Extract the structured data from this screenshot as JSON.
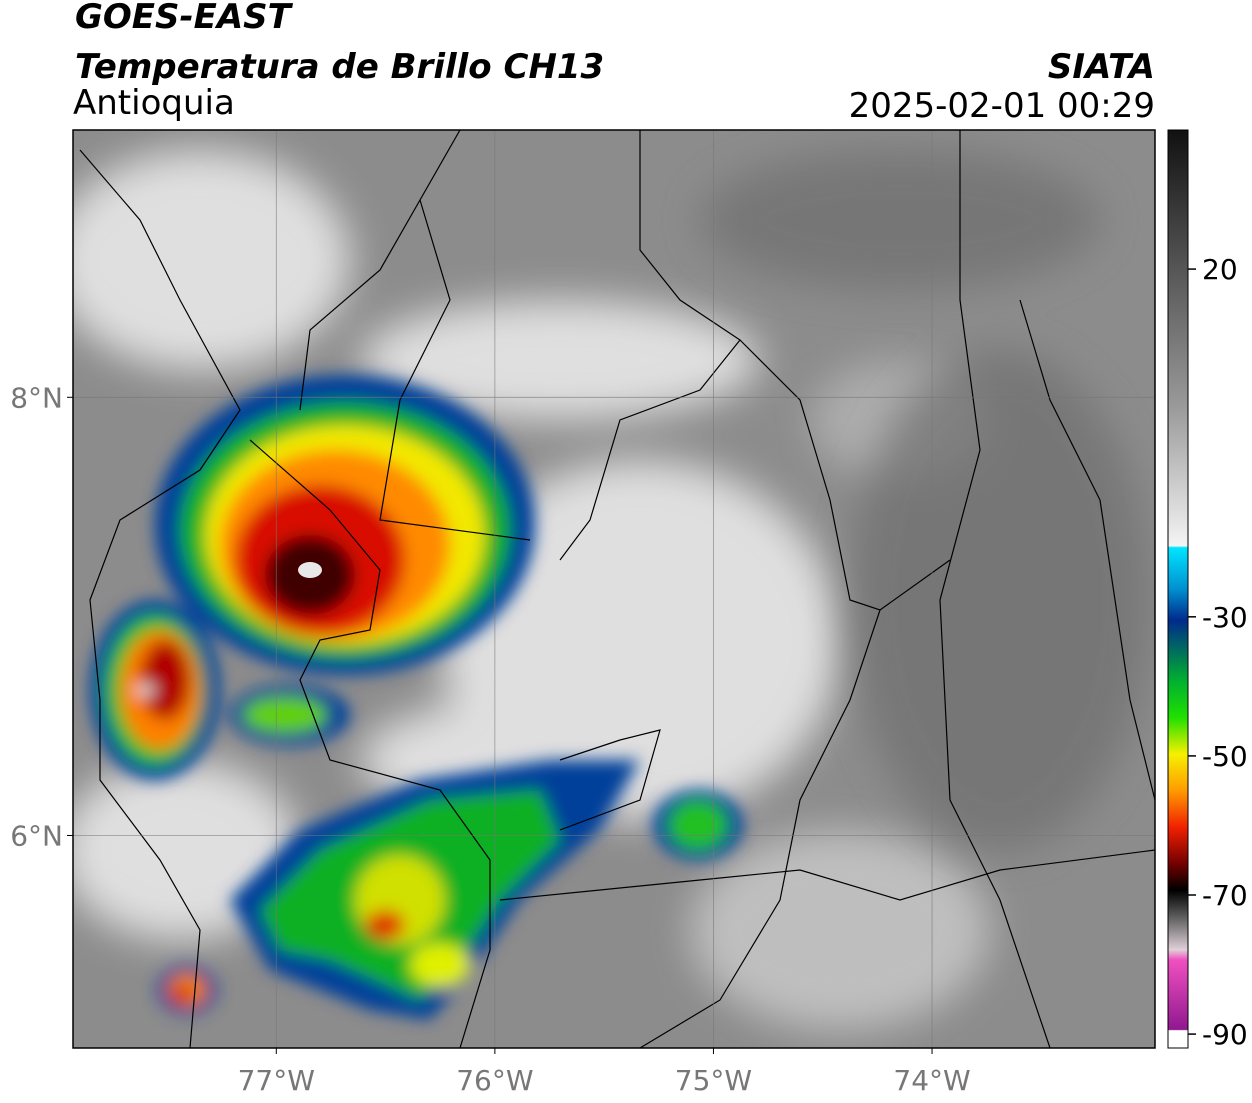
{
  "header": {
    "title": "GOES-EAST",
    "subtitle": "Temperatura de Brillo CH13",
    "region": "Antioquia",
    "source": "SIATA",
    "datetime": "2025-02-01 00:29"
  },
  "map": {
    "lonlim": [
      -77.93,
      -72.98
    ],
    "latlim": [
      5.03,
      9.22
    ],
    "lonticks": [
      {
        "value": -77,
        "label": "77°W"
      },
      {
        "value": -76,
        "label": "76°W"
      },
      {
        "value": -75,
        "label": "75°W"
      },
      {
        "value": -74,
        "label": "74°W"
      }
    ],
    "latticks": [
      {
        "value": 8,
        "label": "8°N"
      },
      {
        "value": 6,
        "label": "6°N"
      }
    ]
  },
  "colorbar": {
    "range": [
      -92,
      40
    ],
    "ticks": [
      20,
      -30,
      -50,
      -70,
      -90
    ]
  }
}
